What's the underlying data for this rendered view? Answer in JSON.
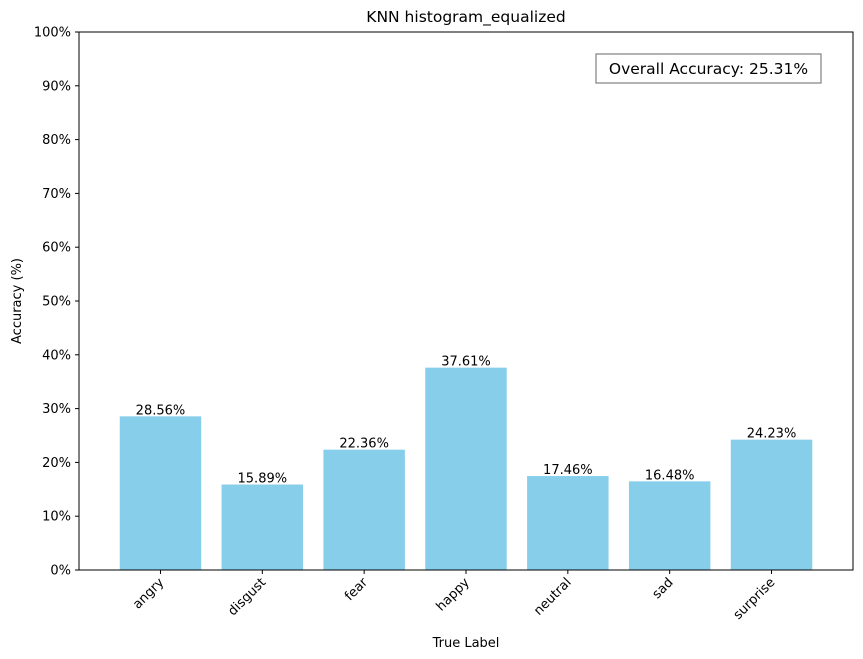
{
  "chart_data": {
    "type": "bar",
    "title": "KNN histogram_equalized",
    "xlabel": "True Label",
    "ylabel": "Accuracy (%)",
    "categories": [
      "angry",
      "disgust",
      "fear",
      "happy",
      "neutral",
      "sad",
      "surprise"
    ],
    "values": [
      28.56,
      15.89,
      22.36,
      37.61,
      17.46,
      16.48,
      24.23
    ],
    "value_labels": [
      "28.56%",
      "15.89%",
      "22.36%",
      "37.61%",
      "17.46%",
      "16.48%",
      "24.23%"
    ],
    "ylim": [
      0,
      100
    ],
    "yticks": [
      0,
      10,
      20,
      30,
      40,
      50,
      60,
      70,
      80,
      90,
      100
    ],
    "ytick_labels": [
      "0%",
      "10%",
      "20%",
      "30%",
      "40%",
      "50%",
      "60%",
      "70%",
      "80%",
      "90%",
      "100%"
    ],
    "grid": false,
    "legend": "none",
    "bar_color": "#87ceeb",
    "annotation": {
      "text": "Overall Accuracy: 25.31%",
      "placement": "top-right"
    }
  }
}
